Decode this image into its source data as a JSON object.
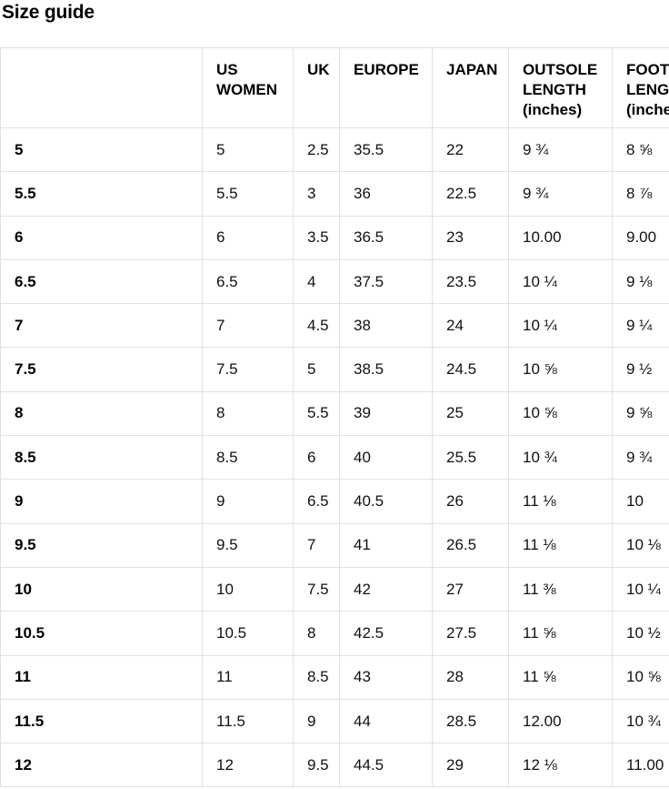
{
  "page": {
    "title": "Size guide"
  },
  "colors": {
    "border": "#e1e1e1",
    "heading_text": "#000000",
    "body_text": "#111111",
    "background": "#ffffff"
  },
  "table": {
    "columns": [
      {
        "key": "size",
        "label": ""
      },
      {
        "key": "us_women",
        "label": "US WOMEN"
      },
      {
        "key": "uk",
        "label": "UK"
      },
      {
        "key": "europe",
        "label": "EUROPE"
      },
      {
        "key": "japan",
        "label": "JAPAN"
      },
      {
        "key": "outsole_length",
        "label": "OUTSOLE LENGTH (inches)"
      },
      {
        "key": "foot_length",
        "label": "FOOT LENGTH (inches)"
      }
    ],
    "rows": [
      {
        "size": "5",
        "us_women": "5",
        "uk": "2.5",
        "europe": "35.5",
        "japan": "22",
        "outsole_length": "9 ¾",
        "foot_length": "8 ⅝"
      },
      {
        "size": "5.5",
        "us_women": "5.5",
        "uk": "3",
        "europe": "36",
        "japan": "22.5",
        "outsole_length": "9 ¾",
        "foot_length": "8 ⅞"
      },
      {
        "size": "6",
        "us_women": "6",
        "uk": "3.5",
        "europe": "36.5",
        "japan": "23",
        "outsole_length": "10.00",
        "foot_length": "9.00"
      },
      {
        "size": "6.5",
        "us_women": "6.5",
        "uk": "4",
        "europe": "37.5",
        "japan": "23.5",
        "outsole_length": "10 ¼",
        "foot_length": "9 ⅛"
      },
      {
        "size": "7",
        "us_women": "7",
        "uk": "4.5",
        "europe": "38",
        "japan": "24",
        "outsole_length": "10 ¼",
        "foot_length": "9 ¼"
      },
      {
        "size": "7.5",
        "us_women": "7.5",
        "uk": "5",
        "europe": "38.5",
        "japan": "24.5",
        "outsole_length": "10 ⅝",
        "foot_length": "9 ½"
      },
      {
        "size": "8",
        "us_women": "8",
        "uk": "5.5",
        "europe": "39",
        "japan": "25",
        "outsole_length": "10 ⅝",
        "foot_length": "9 ⅝"
      },
      {
        "size": "8.5",
        "us_women": "8.5",
        "uk": "6",
        "europe": "40",
        "japan": "25.5",
        "outsole_length": "10 ¾",
        "foot_length": "9 ¾"
      },
      {
        "size": "9",
        "us_women": "9",
        "uk": "6.5",
        "europe": "40.5",
        "japan": "26",
        "outsole_length": "11 ⅛",
        "foot_length": "10"
      },
      {
        "size": "9.5",
        "us_women": "9.5",
        "uk": "7",
        "europe": "41",
        "japan": "26.5",
        "outsole_length": "11 ⅛",
        "foot_length": "10 ⅛"
      },
      {
        "size": "10",
        "us_women": "10",
        "uk": "7.5",
        "europe": "42",
        "japan": "27",
        "outsole_length": "11 ⅜",
        "foot_length": "10 ¼"
      },
      {
        "size": "10.5",
        "us_women": "10.5",
        "uk": "8",
        "europe": "42.5",
        "japan": "27.5",
        "outsole_length": "11 ⅝",
        "foot_length": "10 ½"
      },
      {
        "size": "11",
        "us_women": "11",
        "uk": "8.5",
        "europe": "43",
        "japan": "28",
        "outsole_length": "11 ⅝",
        "foot_length": "10 ⅝"
      },
      {
        "size": "11.5",
        "us_women": "11.5",
        "uk": "9",
        "europe": "44",
        "japan": "28.5",
        "outsole_length": "12.00",
        "foot_length": "10 ¾"
      },
      {
        "size": "12",
        "us_women": "12",
        "uk": "9.5",
        "europe": "44.5",
        "japan": "29",
        "outsole_length": "12 ⅛",
        "foot_length": "11.00"
      }
    ]
  }
}
